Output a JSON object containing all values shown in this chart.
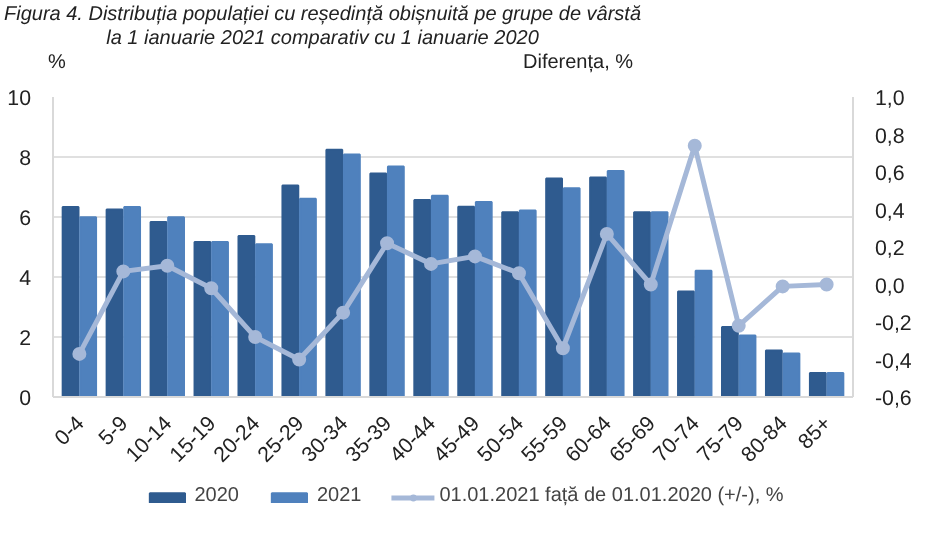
{
  "chart_data": {
    "type": "bar",
    "title": "Figura 4.  Distribuția populației cu reședință obișnuită pe grupe de vârstă",
    "subtitle": "la 1 ianuarie 2021 comparativ cu 1 ianuarie 2020",
    "ylabel": "%",
    "y2label": "Diferența, %",
    "categories": [
      "0-4",
      "5-9",
      "10-14",
      "15-19",
      "20-24",
      "25-29",
      "30-34",
      "35-39",
      "40-44",
      "45-49",
      "50-54",
      "55-59",
      "60-64",
      "65-69",
      "70-74",
      "75-79",
      "80-84",
      "85+"
    ],
    "series": [
      {
        "name": "2020",
        "color": "#2f5b8f",
        "values": [
          6.33,
          6.25,
          5.83,
          5.17,
          5.37,
          7.05,
          8.24,
          7.45,
          6.57,
          6.34,
          6.16,
          7.28,
          7.32,
          6.16,
          3.52,
          2.33,
          1.55,
          0.8
        ]
      },
      {
        "name": "2021",
        "color": "#4f81bd",
        "values": [
          5.99,
          6.33,
          5.99,
          5.17,
          5.09,
          6.61,
          8.08,
          7.68,
          6.71,
          6.5,
          6.22,
          6.96,
          7.53,
          6.16,
          4.21,
          2.05,
          1.45,
          0.8
        ]
      },
      {
        "name": "01.01.2021 față de 01.01.2020 (+/-), %",
        "type": "line",
        "axis": "y2",
        "color": "#a5b8d8",
        "marker": "circle",
        "values": [
          -0.37,
          0.07,
          0.1,
          -0.02,
          -0.28,
          -0.4,
          -0.15,
          0.22,
          0.11,
          0.15,
          0.06,
          -0.34,
          0.27,
          0.0,
          0.74,
          -0.22,
          -0.01,
          0.0
        ]
      }
    ],
    "ylim": [
      0,
      10
    ],
    "yticks": [
      0,
      2,
      4,
      6,
      8,
      10
    ],
    "y2lim": [
      -0.6,
      1.0
    ],
    "y2ticks": [
      {
        "value": -0.6,
        "label": "-0,6"
      },
      {
        "value": -0.4,
        "label": "-0,4"
      },
      {
        "value": -0.2,
        "label": "-0,2"
      },
      {
        "value": 0,
        "label": "0,0"
      },
      {
        "value": 0.2,
        "label": "0,2"
      },
      {
        "value": 0.4,
        "label": "0,4"
      },
      {
        "value": 0.6,
        "label": "0,6"
      },
      {
        "value": 0.8,
        "label": "0,8"
      },
      {
        "value": 1.0,
        "label": "1,0"
      }
    ],
    "grid": "y",
    "legend": "bottom"
  }
}
